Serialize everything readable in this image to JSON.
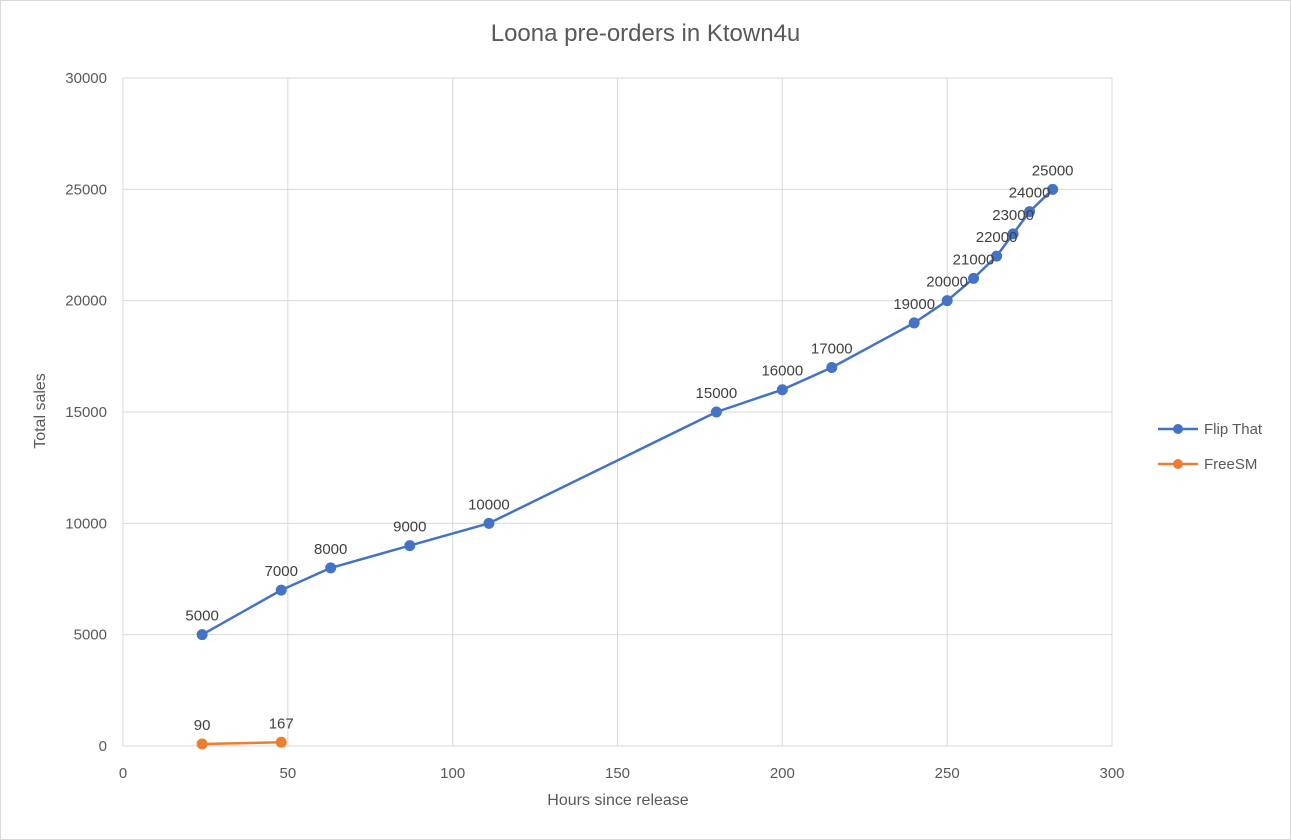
{
  "chart_data": {
    "type": "line",
    "title": "Loona pre-orders in Ktown4u",
    "xlabel": "Hours since release",
    "ylabel": "Total sales",
    "xlim": [
      0,
      300
    ],
    "ylim": [
      0,
      30000
    ],
    "x_ticks": [
      0,
      50,
      100,
      150,
      200,
      250,
      300
    ],
    "y_ticks": [
      0,
      5000,
      10000,
      15000,
      20000,
      25000,
      30000
    ],
    "grid": true,
    "legend_position": "right",
    "series": [
      {
        "name": "Flip That",
        "color": "#4472c4",
        "points": [
          {
            "x": 24,
            "y": 5000,
            "label": "5000"
          },
          {
            "x": 48,
            "y": 7000,
            "label": "7000"
          },
          {
            "x": 63,
            "y": 8000,
            "label": "8000"
          },
          {
            "x": 87,
            "y": 9000,
            "label": "9000"
          },
          {
            "x": 111,
            "y": 10000,
            "label": "10000"
          },
          {
            "x": 180,
            "y": 15000,
            "label": "15000"
          },
          {
            "x": 200,
            "y": 16000,
            "label": "16000"
          },
          {
            "x": 215,
            "y": 17000,
            "label": "17000"
          },
          {
            "x": 240,
            "y": 19000,
            "label": "19000"
          },
          {
            "x": 250,
            "y": 20000,
            "label": "20000"
          },
          {
            "x": 258,
            "y": 21000,
            "label": "21000"
          },
          {
            "x": 265,
            "y": 22000,
            "label": "22000"
          },
          {
            "x": 270,
            "y": 23000,
            "label": "23000"
          },
          {
            "x": 275,
            "y": 24000,
            "label": "24000"
          },
          {
            "x": 282,
            "y": 25000,
            "label": "25000"
          }
        ]
      },
      {
        "name": "FreeSM",
        "color": "#ed7d31",
        "points": [
          {
            "x": 24,
            "y": 90,
            "label": "90"
          },
          {
            "x": 48,
            "y": 167,
            "label": "167"
          }
        ]
      }
    ]
  }
}
